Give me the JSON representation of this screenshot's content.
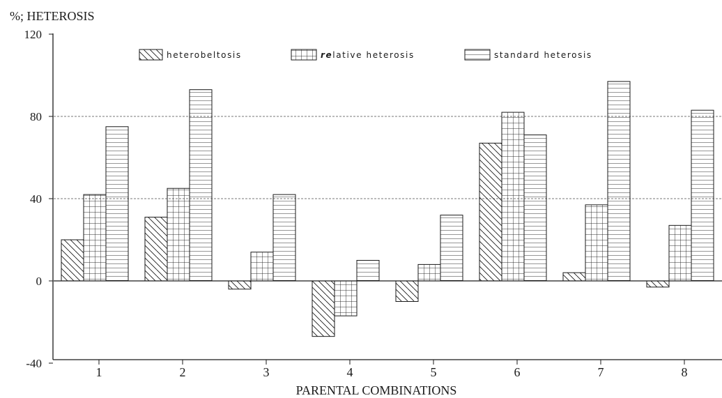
{
  "chart_data": {
    "type": "bar",
    "ylabel": "%; HETEROSIS",
    "xlabel": "PARENTAL COMBINATIONS",
    "ylim": [
      -40,
      120
    ],
    "yticks": [
      120,
      80,
      40,
      0,
      -40
    ],
    "gridlines_at": [
      80,
      40
    ],
    "categories": [
      "1",
      "2",
      "3",
      "4",
      "5",
      "6",
      "7",
      "8"
    ],
    "legend_position": "top",
    "series": [
      {
        "name": "heterobeltosis",
        "pattern": "diagonal",
        "values": [
          20,
          31,
          -4,
          -27,
          -10,
          67,
          4,
          -3
        ]
      },
      {
        "name": "relative heterosis",
        "pattern": "grid",
        "values": [
          42,
          45,
          14,
          -17,
          8,
          82,
          37,
          27
        ]
      },
      {
        "name": "standard heterosis",
        "pattern": "horizontal",
        "values": [
          75,
          93,
          42,
          10,
          32,
          71,
          97,
          83
        ]
      }
    ]
  },
  "legend_labels": {
    "heterobeltosis": "heterobeltosis",
    "relative_prefix": "re",
    "relative_suffix": "lative heterosis",
    "standard": "standard heterosis"
  },
  "colors": {
    "ink": "#1a1a1a",
    "grid": "#777777"
  }
}
